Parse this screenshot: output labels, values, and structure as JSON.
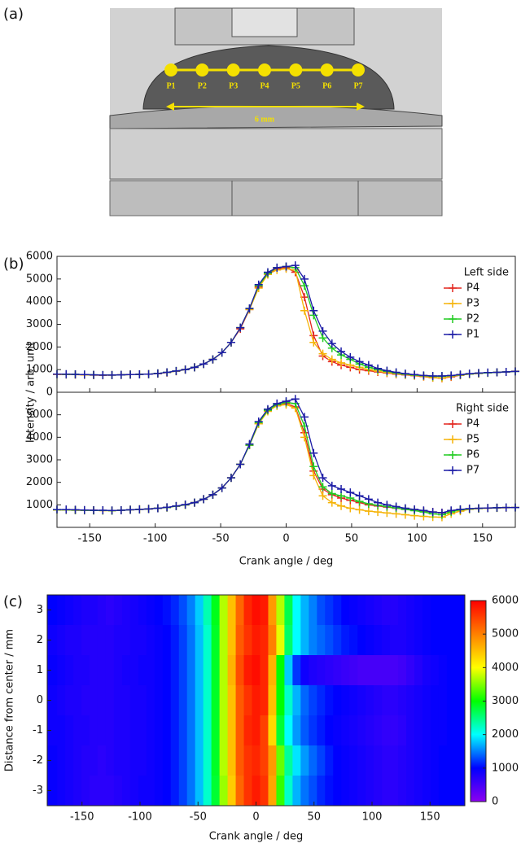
{
  "figure": {
    "panel_labels": [
      "(a)",
      "(b)",
      "(c)"
    ],
    "diagram": {
      "points": [
        "P1",
        "P2",
        "P3",
        "P4",
        "P5",
        "P6",
        "P7"
      ],
      "scale_label": "6 mm"
    }
  },
  "chart_data": [
    {
      "type": "line",
      "ylabel": "Intensity / arb. unit",
      "legend_title": "Left side",
      "legend": "upper right",
      "xlim": [
        -175,
        175
      ],
      "xticks": [
        -150,
        -100,
        -50,
        0,
        50,
        100,
        150
      ],
      "ylim": [
        0,
        6000
      ],
      "yticks": [
        0,
        1000,
        2000,
        3000,
        4000,
        5000,
        6000
      ],
      "x": [
        -175,
        -168,
        -161,
        -154,
        -147,
        -140,
        -133,
        -126,
        -119,
        -112,
        -105,
        -98,
        -91,
        -84,
        -77,
        -70,
        -63,
        -56,
        -49,
        -42,
        -35,
        -28,
        -21,
        -14,
        -7,
        0,
        7,
        14,
        21,
        28,
        35,
        42,
        49,
        56,
        63,
        70,
        77,
        84,
        91,
        98,
        105,
        112,
        119,
        126,
        133,
        140,
        147,
        154,
        161,
        168,
        175
      ],
      "series": [
        {
          "name": "P4",
          "color": "#e3261f",
          "values": [
            790,
            780,
            780,
            770,
            760,
            750,
            760,
            770,
            780,
            790,
            800,
            820,
            870,
            930,
            1000,
            1100,
            1250,
            1450,
            1750,
            2200,
            2800,
            3650,
            4650,
            5200,
            5450,
            5500,
            5300,
            4200,
            2500,
            1600,
            1350,
            1200,
            1100,
            1000,
            950,
            900,
            850,
            800,
            770,
            730,
            690,
            640,
            620,
            680,
            750,
            800,
            830,
            860,
            880,
            900,
            930
          ]
        },
        {
          "name": "P3",
          "color": "#f5b40a",
          "values": [
            790,
            790,
            780,
            770,
            760,
            760,
            760,
            770,
            780,
            790,
            800,
            830,
            870,
            930,
            1000,
            1100,
            1250,
            1450,
            1750,
            2200,
            2850,
            3650,
            4600,
            5200,
            5400,
            5450,
            5400,
            3600,
            2200,
            1700,
            1450,
            1300,
            1200,
            1100,
            1000,
            930,
            870,
            820,
            780,
            740,
            700,
            650,
            630,
            700,
            760,
            800,
            830,
            860,
            880,
            900,
            920
          ]
        },
        {
          "name": "P2",
          "color": "#22cc22",
          "values": [
            800,
            790,
            790,
            780,
            770,
            760,
            760,
            770,
            780,
            790,
            800,
            830,
            880,
            940,
            1000,
            1100,
            1250,
            1450,
            1750,
            2200,
            2850,
            3700,
            4700,
            5250,
            5500,
            5550,
            5500,
            4700,
            3400,
            2400,
            1950,
            1650,
            1450,
            1250,
            1100,
            1000,
            920,
            850,
            800,
            760,
            730,
            700,
            700,
            730,
            770,
            810,
            840,
            860,
            880,
            900,
            920
          ]
        },
        {
          "name": "P1",
          "color": "#1c1ca6",
          "values": [
            800,
            800,
            790,
            780,
            770,
            760,
            760,
            770,
            780,
            790,
            800,
            830,
            880,
            940,
            1000,
            1100,
            1250,
            1450,
            1750,
            2200,
            2850,
            3700,
            4750,
            5300,
            5500,
            5550,
            5600,
            5000,
            3600,
            2700,
            2150,
            1800,
            1550,
            1350,
            1200,
            1050,
            950,
            880,
            820,
            780,
            740,
            720,
            720,
            740,
            780,
            820,
            850,
            870,
            880,
            900,
            920
          ]
        }
      ]
    },
    {
      "type": "line",
      "xlabel": "Crank angle / deg",
      "legend_title": "Right side",
      "legend": "upper right",
      "xlim": [
        -175,
        175
      ],
      "xticks": [
        -150,
        -100,
        -50,
        0,
        50,
        100,
        150
      ],
      "ylim": [
        0,
        6000
      ],
      "yticks": [
        1000,
        2000,
        3000,
        4000,
        5000
      ],
      "x": [
        -175,
        -168,
        -161,
        -154,
        -147,
        -140,
        -133,
        -126,
        -119,
        -112,
        -105,
        -98,
        -91,
        -84,
        -77,
        -70,
        -63,
        -56,
        -49,
        -42,
        -35,
        -28,
        -21,
        -14,
        -7,
        0,
        7,
        14,
        21,
        28,
        35,
        42,
        49,
        56,
        63,
        70,
        77,
        84,
        91,
        98,
        105,
        112,
        119,
        126,
        133,
        140,
        147,
        154,
        161,
        168,
        175
      ],
      "series": [
        {
          "name": "P4",
          "color": "#e3261f",
          "values": [
            780,
            780,
            770,
            760,
            760,
            750,
            740,
            760,
            780,
            800,
            820,
            850,
            880,
            940,
            1000,
            1100,
            1250,
            1450,
            1750,
            2200,
            2800,
            3650,
            4600,
            5200,
            5400,
            5500,
            5350,
            4200,
            2500,
            1700,
            1450,
            1300,
            1200,
            1100,
            1000,
            950,
            900,
            850,
            800,
            760,
            720,
            680,
            650,
            720,
            780,
            820,
            840,
            860,
            870,
            880,
            880
          ]
        },
        {
          "name": "P5",
          "color": "#f5b40a",
          "values": [
            770,
            770,
            760,
            750,
            750,
            740,
            740,
            760,
            780,
            800,
            820,
            850,
            880,
            940,
            1000,
            1100,
            1250,
            1450,
            1750,
            2200,
            2800,
            3650,
            4600,
            5150,
            5400,
            5450,
            5300,
            4000,
            2300,
            1400,
            1100,
            950,
            850,
            780,
            720,
            680,
            640,
            600,
            560,
            520,
            490,
            460,
            450,
            600,
            720,
            800,
            830,
            850,
            860,
            870,
            880
          ]
        },
        {
          "name": "P6",
          "color": "#22cc22",
          "values": [
            780,
            780,
            770,
            760,
            750,
            750,
            740,
            760,
            780,
            800,
            820,
            850,
            880,
            940,
            1000,
            1100,
            1250,
            1450,
            1750,
            2200,
            2800,
            3650,
            4650,
            5200,
            5450,
            5550,
            5500,
            4500,
            2700,
            1800,
            1500,
            1400,
            1300,
            1150,
            1050,
            980,
            920,
            860,
            800,
            740,
            680,
            600,
            560,
            680,
            780,
            820,
            840,
            860,
            870,
            880,
            880
          ]
        },
        {
          "name": "P7",
          "color": "#1c1ca6",
          "values": [
            790,
            790,
            780,
            770,
            760,
            760,
            750,
            760,
            780,
            800,
            820,
            850,
            890,
            950,
            1010,
            1100,
            1250,
            1450,
            1750,
            2200,
            2800,
            3700,
            4700,
            5250,
            5500,
            5600,
            5700,
            4900,
            3300,
            2200,
            1850,
            1700,
            1550,
            1400,
            1250,
            1100,
            1000,
            920,
            850,
            800,
            750,
            680,
            650,
            750,
            800,
            830,
            850,
            860,
            870,
            880,
            880
          ]
        }
      ]
    },
    {
      "type": "heatmap",
      "xlabel": "Crank angle / deg",
      "ylabel": "Distance from center / mm",
      "xlim": [
        -180,
        180
      ],
      "xticks": [
        -150,
        -100,
        -50,
        0,
        50,
        100,
        150
      ],
      "ylim": [
        -3.5,
        3.5
      ],
      "yticks": [
        -3,
        -2,
        -1,
        0,
        1,
        2,
        3
      ],
      "colormap": [
        "#8c00f0",
        "#0000ff",
        "#00ffff",
        "#00ff00",
        "#ffff00",
        "#ff8000",
        "#ff0000"
      ],
      "clim": [
        0,
        6000
      ],
      "cticks": [
        0,
        1000,
        2000,
        3000,
        4000,
        5000,
        6000
      ],
      "x": [
        -175,
        -168,
        -161,
        -154,
        -147,
        -140,
        -133,
        -126,
        -119,
        -112,
        -105,
        -98,
        -91,
        -84,
        -77,
        -70,
        -63,
        -56,
        -49,
        -42,
        -35,
        -28,
        -21,
        -14,
        -7,
        0,
        7,
        14,
        21,
        28,
        35,
        42,
        49,
        56,
        63,
        70,
        77,
        84,
        91,
        98,
        105,
        112,
        119,
        126,
        133,
        140,
        147,
        154,
        161,
        168,
        175
      ],
      "y": [
        3,
        2,
        1,
        0,
        -1,
        -2,
        -3
      ],
      "z": [
        [
          1000,
          950,
          900,
          850,
          800,
          800,
          750,
          700,
          750,
          800,
          850,
          900,
          950,
          1000,
          1050,
          1150,
          1300,
          1500,
          1800,
          2300,
          2900,
          3700,
          4500,
          5200,
          5700,
          5900,
          5800,
          4800,
          3700,
          2700,
          2000,
          1700,
          1500,
          1300,
          1200,
          1100,
          1000,
          950,
          900,
          850,
          800,
          750,
          750,
          800,
          850,
          900,
          950,
          1000,
          1000,
          1000,
          1000
        ],
        [
          900,
          850,
          800,
          800,
          750,
          750,
          750,
          750,
          800,
          800,
          850,
          850,
          900,
          950,
          1000,
          1100,
          1250,
          1450,
          1750,
          2200,
          2850,
          3700,
          4500,
          5300,
          5600,
          5800,
          5700,
          5000,
          3900,
          2600,
          2000,
          1700,
          1500,
          1400,
          1300,
          1200,
          1100,
          1050,
          1000,
          950,
          900,
          850,
          800,
          800,
          850,
          900,
          950,
          1000,
          1000,
          1000,
          1000
        ],
        [
          950,
          900,
          850,
          800,
          800,
          750,
          750,
          750,
          800,
          850,
          850,
          900,
          900,
          950,
          1000,
          1100,
          1250,
          1450,
          1750,
          2200,
          2850,
          3700,
          4600,
          5400,
          5800,
          5900,
          5700,
          4600,
          3000,
          1800,
          1200,
          900,
          800,
          750,
          700,
          650,
          600,
          550,
          500,
          500,
          500,
          500,
          500,
          550,
          650,
          750,
          850,
          900,
          950,
          1000,
          1000
        ],
        [
          900,
          850,
          800,
          800,
          750,
          750,
          750,
          750,
          800,
          800,
          850,
          850,
          900,
          950,
          1000,
          1100,
          1250,
          1450,
          1750,
          2200,
          2850,
          3700,
          4500,
          5300,
          5600,
          5800,
          5700,
          4500,
          3000,
          2200,
          1700,
          1400,
          1250,
          1150,
          1050,
          1000,
          950,
          900,
          850,
          800,
          750,
          700,
          700,
          750,
          800,
          850,
          900,
          950,
          950,
          1000,
          1000
        ],
        [
          900,
          900,
          850,
          800,
          800,
          750,
          750,
          750,
          800,
          800,
          850,
          850,
          900,
          950,
          1000,
          1100,
          1250,
          1450,
          1750,
          2200,
          2850,
          3700,
          4500,
          5300,
          5700,
          5800,
          5500,
          4300,
          2800,
          2000,
          1600,
          1350,
          1200,
          1100,
          1000,
          950,
          900,
          850,
          800,
          750,
          700,
          650,
          650,
          700,
          800,
          850,
          900,
          950,
          950,
          1000,
          1000
        ],
        [
          950,
          900,
          850,
          800,
          750,
          750,
          700,
          750,
          800,
          800,
          850,
          850,
          900,
          950,
          1000,
          1100,
          1250,
          1450,
          1750,
          2200,
          2850,
          3700,
          4500,
          5300,
          5600,
          5700,
          5500,
          4800,
          3400,
          2400,
          1900,
          1600,
          1400,
          1250,
          1100,
          1000,
          950,
          900,
          850,
          800,
          750,
          700,
          700,
          750,
          800,
          850,
          900,
          950,
          1000,
          1000,
          1000
        ],
        [
          950,
          900,
          850,
          800,
          750,
          700,
          700,
          700,
          750,
          800,
          850,
          900,
          900,
          950,
          1000,
          1100,
          1250,
          1450,
          1750,
          2200,
          2800,
          3600,
          4400,
          5200,
          5600,
          5800,
          5600,
          4700,
          3200,
          2200,
          1700,
          1450,
          1300,
          1150,
          1050,
          1000,
          950,
          900,
          850,
          800,
          750,
          700,
          700,
          750,
          800,
          850,
          900,
          950,
          1000,
          1000,
          1000
        ]
      ]
    }
  ]
}
